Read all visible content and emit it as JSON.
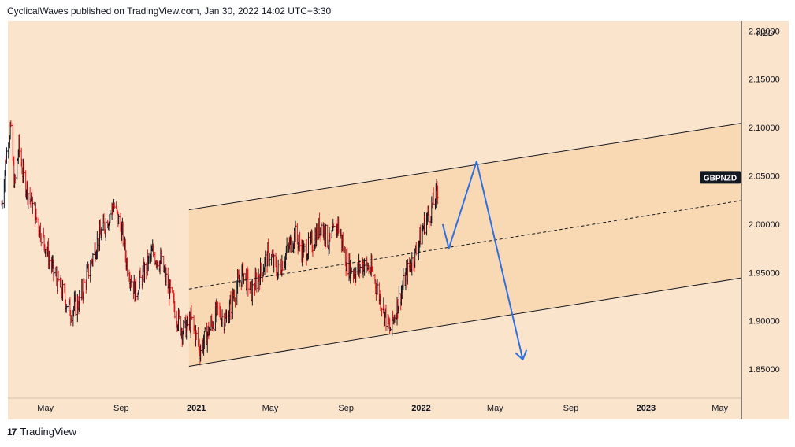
{
  "header": {
    "text": "CyclicalWaves published on TradingView.com, Jan 30, 2022 14:02 UTC+3:30"
  },
  "footer": {
    "logo": "17",
    "brand": "TradingView"
  },
  "colors": {
    "background": "#fbe4cc",
    "channel_fill": "#f9d9b3",
    "bull_bar": "#131722",
    "bear_bar": "#e0181b",
    "projection": "#2f6fe0",
    "symbol_badge": "#131722"
  },
  "chart_data": {
    "type": "bar",
    "symbol_label": "GBPNZD",
    "currency_label": "NZD",
    "y_axis": {
      "range": [
        1.82,
        2.21
      ],
      "ticks": [
        "2.20000",
        "2.15000",
        "2.10000",
        "2.05000",
        "2.00000",
        "1.95000",
        "1.90000",
        "1.85000"
      ]
    },
    "x_axis": {
      "ticks": [
        "May",
        "Sep",
        "2021",
        "May",
        "Sep",
        "2022",
        "May",
        "Sep",
        "2023",
        "May"
      ]
    },
    "price_path": [
      [
        "2020-02-20",
        2.02
      ],
      [
        "2020-02-27",
        2.07
      ],
      [
        "2020-03-05",
        2.1
      ],
      [
        "2020-03-12",
        2.04
      ],
      [
        "2020-03-19",
        2.08
      ],
      [
        "2020-03-26",
        2.05
      ],
      [
        "2020-04-09",
        2.02
      ],
      [
        "2020-04-30",
        1.98
      ],
      [
        "2020-05-14",
        1.95
      ],
      [
        "2020-05-28",
        1.93
      ],
      [
        "2020-06-11",
        1.91
      ],
      [
        "2020-06-25",
        1.92
      ],
      [
        "2020-07-09",
        1.95
      ],
      [
        "2020-07-23",
        1.98
      ],
      [
        "2020-08-06",
        2.0
      ],
      [
        "2020-08-20",
        2.02
      ],
      [
        "2020-09-03",
        1.99
      ],
      [
        "2020-09-10",
        1.96
      ],
      [
        "2020-09-24",
        1.93
      ],
      [
        "2020-10-08",
        1.95
      ],
      [
        "2020-10-22",
        1.97
      ],
      [
        "2020-11-05",
        1.96
      ],
      [
        "2020-11-19",
        1.93
      ],
      [
        "2020-12-03",
        1.9
      ],
      [
        "2020-12-10",
        1.89
      ],
      [
        "2020-12-24",
        1.9
      ],
      [
        "2021-01-07",
        1.87
      ],
      [
        "2021-01-21",
        1.89
      ],
      [
        "2021-02-04",
        1.91
      ],
      [
        "2021-02-18",
        1.9
      ],
      [
        "2021-03-04",
        1.93
      ],
      [
        "2021-03-18",
        1.95
      ],
      [
        "2021-04-01",
        1.93
      ],
      [
        "2021-04-15",
        1.95
      ],
      [
        "2021-04-29",
        1.97
      ],
      [
        "2021-05-13",
        1.95
      ],
      [
        "2021-05-27",
        1.97
      ],
      [
        "2021-06-10",
        1.99
      ],
      [
        "2021-06-24",
        1.97
      ],
      [
        "2021-07-08",
        1.98
      ],
      [
        "2021-07-22",
        2.0
      ],
      [
        "2021-08-05",
        1.98
      ],
      [
        "2021-08-19",
        2.0
      ],
      [
        "2021-09-02",
        1.96
      ],
      [
        "2021-09-16",
        1.95
      ],
      [
        "2021-09-30",
        1.96
      ],
      [
        "2021-10-14",
        1.95
      ],
      [
        "2021-10-28",
        1.92
      ],
      [
        "2021-11-11",
        1.89
      ],
      [
        "2021-11-25",
        1.92
      ],
      [
        "2021-12-09",
        1.95
      ],
      [
        "2021-12-23",
        1.97
      ],
      [
        "2022-01-06",
        2.0
      ],
      [
        "2022-01-20",
        2.02
      ],
      [
        "2022-01-30",
        2.04
      ]
    ],
    "channel": {
      "start": "2020-12-20",
      "end": "2023-06-10",
      "upper": [
        2.015,
        2.105
      ],
      "lower": [
        1.853,
        1.945
      ],
      "mid": [
        1.933,
        2.025
      ],
      "highlighted_start": "2020-12-20",
      "highlighted_end": "2023-06-10"
    },
    "projection": [
      [
        "2022-02-05",
        2.0
      ],
      [
        "2022-02-15",
        1.975
      ],
      [
        "2022-04-01",
        2.065
      ],
      [
        "2022-06-15",
        1.86
      ]
    ]
  }
}
